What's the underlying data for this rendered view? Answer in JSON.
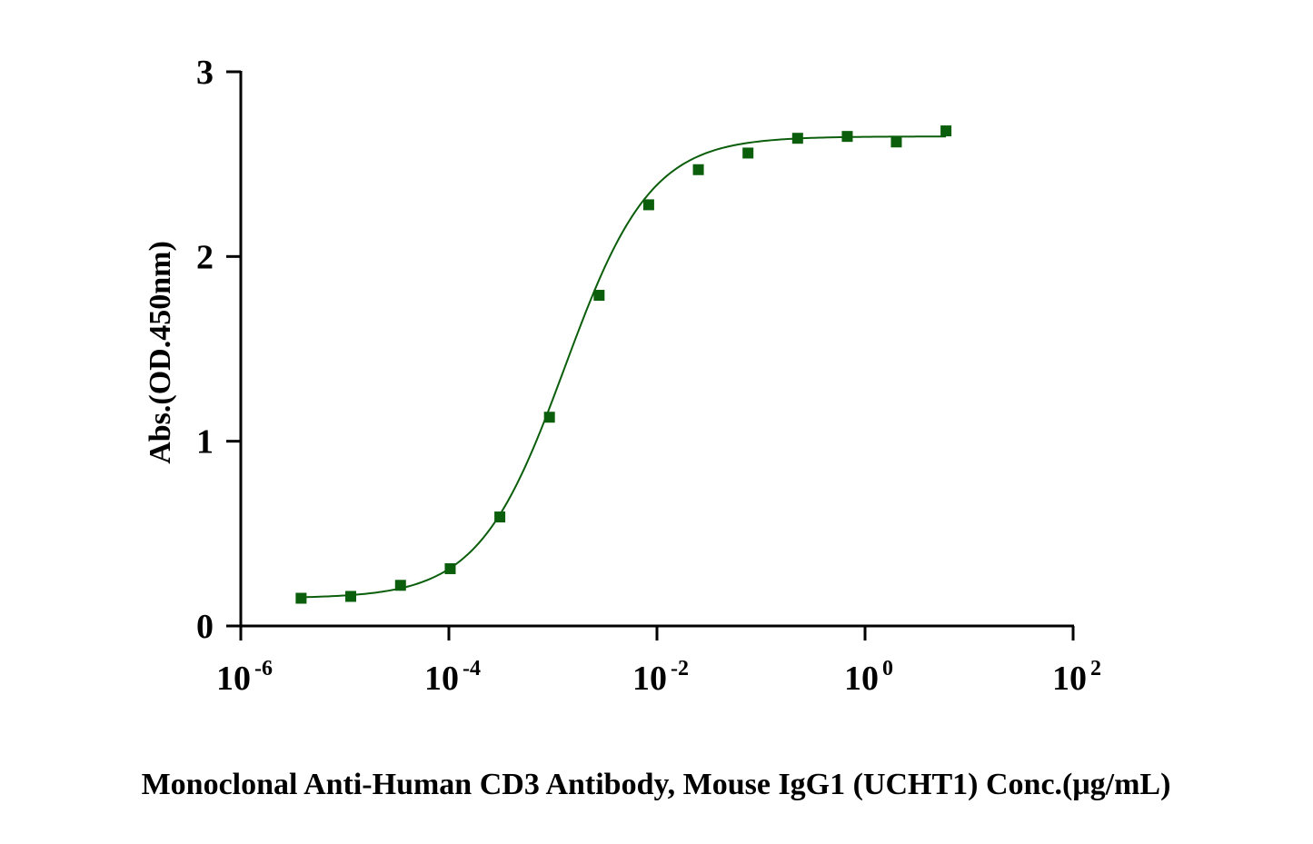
{
  "chart_data": {
    "type": "scatter",
    "xlabel": "Monoclonal Anti-Human CD3 Antibody, Mouse IgG1 (UCHT1) Conc.(μg/mL)",
    "ylabel": "Abs.(OD.450nm)",
    "x_scale": "log10",
    "xlim": [
      1e-06,
      100
    ],
    "ylim": [
      0,
      3
    ],
    "x_ticks": [
      {
        "base": "10",
        "exp": "-6"
      },
      {
        "base": "10",
        "exp": "-4"
      },
      {
        "base": "10",
        "exp": "-2"
      },
      {
        "base": "10",
        "exp": "0"
      },
      {
        "base": "10",
        "exp": "2"
      }
    ],
    "y_ticks": [
      "0",
      "1",
      "2",
      "3"
    ],
    "y_tick_values": [
      0,
      1,
      2,
      3
    ],
    "grid": false,
    "marker": "square",
    "color": "#0b5e0b",
    "series": [
      {
        "x": [
          3.8e-06,
          1.14e-05,
          3.43e-05,
          0.000103,
          0.000309,
          0.000926,
          0.00278,
          0.00833,
          0.025,
          0.075,
          0.225,
          0.675,
          2.0,
          6.0
        ],
        "y": [
          0.15,
          0.16,
          0.22,
          0.31,
          0.59,
          1.13,
          1.79,
          2.28,
          2.47,
          2.56,
          2.64,
          2.65,
          2.62,
          2.68
        ]
      }
    ],
    "fit_curve": {
      "type": "4PL",
      "bottom": 0.15,
      "top": 2.65,
      "ec50": 0.0013,
      "hill": 1.05
    }
  }
}
